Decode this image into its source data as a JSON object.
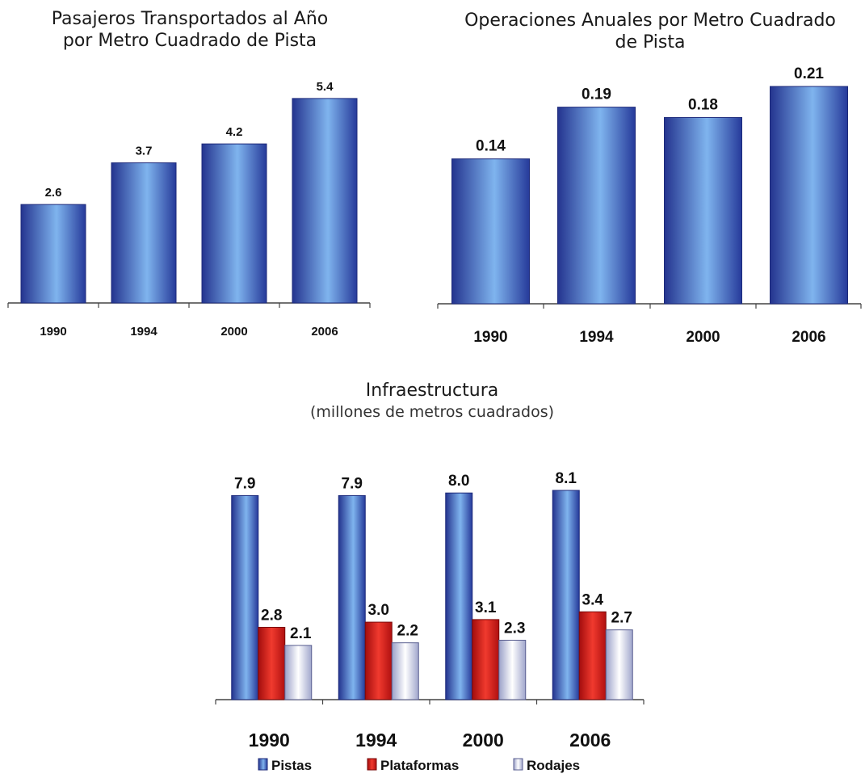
{
  "colors": {
    "pistas": "#3a62c9",
    "plataformas": "#d81e1e",
    "rodajes": "#eeeef8",
    "axis": "#444444"
  },
  "chart_data": [
    {
      "type": "bar",
      "title_lines": [
        "Pasajeros Transportados al Año",
        "por Metro Cuadrado de Pista"
      ],
      "categories": [
        "1990",
        "1994",
        "2000",
        "2006"
      ],
      "values": [
        2.6,
        3.7,
        4.2,
        5.4
      ],
      "value_labels": [
        "2.6",
        "3.7",
        "4.2",
        "5.4"
      ],
      "ylim": [
        0,
        6.4
      ],
      "grid": false
    },
    {
      "type": "bar",
      "title_lines": [
        "Operaciones Anuales por Metro Cuadrado",
        "de Pista"
      ],
      "categories": [
        "1990",
        "1994",
        "2000",
        "2006"
      ],
      "values": [
        0.14,
        0.19,
        0.18,
        0.21
      ],
      "value_labels": [
        "0.14",
        "0.19",
        "0.18",
        "0.21"
      ],
      "ylim": [
        0,
        0.235
      ],
      "grid": false
    },
    {
      "type": "bar",
      "title": "Infraestructura",
      "subtitle": "(millones de metros cuadrados)",
      "categories": [
        "1990",
        "1994",
        "2000",
        "2006"
      ],
      "series": [
        {
          "name": "Pistas",
          "values": [
            7.9,
            7.9,
            8.0,
            8.1
          ],
          "value_labels": [
            "7.9",
            "7.9",
            "8.0",
            "8.1"
          ]
        },
        {
          "name": "Plataformas",
          "values": [
            2.8,
            3.0,
            3.1,
            3.4
          ],
          "value_labels": [
            "2.8",
            "3.0",
            "3.1",
            "3.4"
          ]
        },
        {
          "name": "Rodajes",
          "values": [
            2.1,
            2.2,
            2.3,
            2.7
          ],
          "value_labels": [
            "2.1",
            "2.2",
            "2.3",
            "2.7"
          ]
        }
      ],
      "ylim": [
        0,
        9.6
      ],
      "legend": "bottom",
      "grid": false
    }
  ]
}
